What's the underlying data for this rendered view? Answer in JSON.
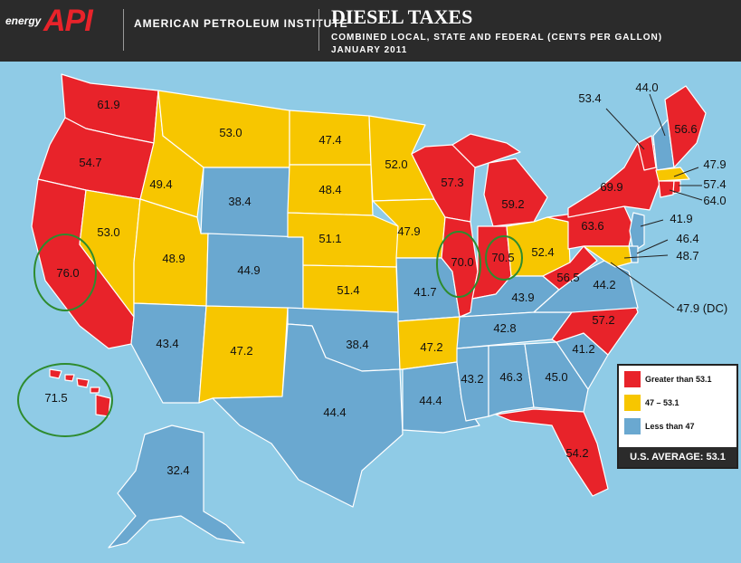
{
  "header": {
    "logo_small": "energy",
    "logo_big": "API",
    "organization": "AMERICAN PETROLEUM INSTITUTE",
    "title": "DIESEL TAXES",
    "subtitle": "COMBINED LOCAL, STATE AND FEDERAL (CENTS PER GALLON)",
    "date": "JANUARY 2011"
  },
  "colors": {
    "high": "#e8232a",
    "mid": "#f7c600",
    "low": "#6aa8d0",
    "ocean": "#8fcbe6",
    "circle": "#2e8b2e"
  },
  "legend": {
    "items": [
      {
        "label": "Greater than 53.1",
        "color": "#e8232a"
      },
      {
        "label": "47 – 53.1",
        "color": "#f7c600"
      },
      {
        "label": "Less than 47",
        "color": "#6aa8d0"
      }
    ],
    "average": "U.S. AVERAGE: 53.1"
  },
  "states": {
    "WA": "61.9",
    "OR": "54.7",
    "CA": "76.0",
    "NV": "53.0",
    "ID": "49.4",
    "MT": "53.0",
    "WY": "38.4",
    "UT": "48.9",
    "AZ": "43.4",
    "CO": "44.9",
    "NM": "47.2",
    "ND": "47.4",
    "SD": "48.4",
    "NE": "51.1",
    "KS": "51.4",
    "OK": "38.4",
    "TX": "44.4",
    "MN": "52.0",
    "IA": "47.9",
    "MO": "41.7",
    "AR": "47.2",
    "LA": "44.4",
    "WI": "57.3",
    "IL": "70.0",
    "MI": "59.2",
    "IN": "70.5",
    "OH": "52.4",
    "KY": "43.9",
    "TN": "42.8",
    "MS": "43.2",
    "AL": "46.3",
    "GA": "45.0",
    "FL": "54.2",
    "SC": "41.2",
    "NC": "57.2",
    "VA": "44.2",
    "WV": "56.5",
    "PA": "63.6",
    "NY": "69.9",
    "AK": "32.4",
    "HI": "71.5",
    "ME": "56.6",
    "VT": "53.4",
    "NH": "44.0",
    "MA": "47.9",
    "RI": "57.4",
    "CT": "64.0",
    "NJ": "41.9",
    "DE": "46.4",
    "MD": "48.7",
    "DC": "47.9 (DC)"
  }
}
